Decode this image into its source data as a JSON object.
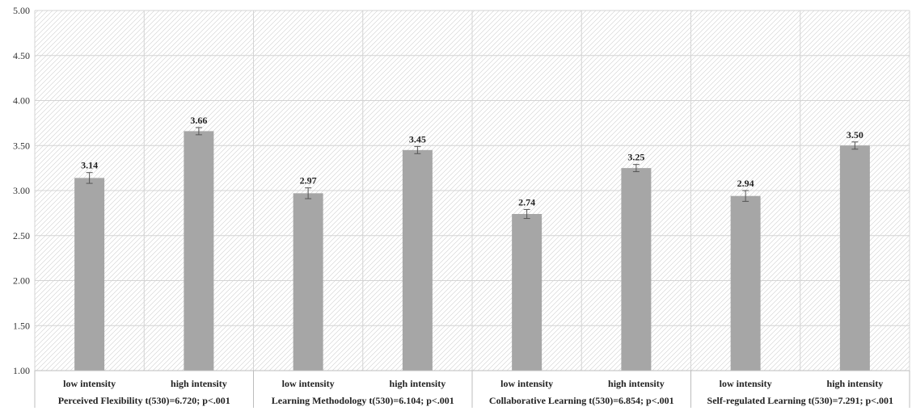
{
  "chart_data": {
    "type": "bar",
    "ylim": [
      1.0,
      5.0
    ],
    "yticks": [
      "1.00",
      "1.50",
      "2.00",
      "2.50",
      "3.00",
      "3.50",
      "4.00",
      "4.50",
      "5.00"
    ],
    "grid": true,
    "legend": "none",
    "bar_color": "#a6a6a6",
    "groups": [
      {
        "label": "Perceived Flexibility t(530)=6.720; p<.001",
        "bars": [
          {
            "category": "low intensity",
            "value": 3.14,
            "label": "3.14",
            "error": 0.06
          },
          {
            "category": "high intensity",
            "value": 3.66,
            "label": "3.66",
            "error": 0.04
          }
        ]
      },
      {
        "label": "Learning Methodology t(530)=6.104; p<.001",
        "bars": [
          {
            "category": "low intensity",
            "value": 2.97,
            "label": "2.97",
            "error": 0.06
          },
          {
            "category": "high intensity",
            "value": 3.45,
            "label": "3.45",
            "error": 0.04
          }
        ]
      },
      {
        "label": "Collaborative Learning t(530)=6.854; p<.001",
        "bars": [
          {
            "category": "low intensity",
            "value": 2.74,
            "label": "2.74",
            "error": 0.05
          },
          {
            "category": "high intensity",
            "value": 3.25,
            "label": "3.25",
            "error": 0.04
          }
        ]
      },
      {
        "label": "Self-regulated Learning t(530)=7.291; p<.001",
        "bars": [
          {
            "category": "low intensity",
            "value": 2.94,
            "label": "2.94",
            "error": 0.06
          },
          {
            "category": "high intensity",
            "value": 3.5,
            "label": "3.50",
            "error": 0.04
          }
        ]
      }
    ]
  }
}
